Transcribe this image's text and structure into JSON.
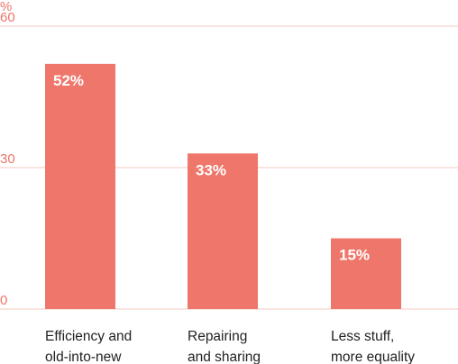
{
  "chart_data": {
    "type": "bar",
    "unit_label": "%",
    "categories": [
      [
        "Efficiency and",
        "old-into-new"
      ],
      [
        "Repairing",
        "and sharing"
      ],
      [
        "Less stuff,",
        "more equality"
      ]
    ],
    "values": [
      52,
      33,
      15
    ],
    "data_labels": [
      "52%",
      "33%",
      "15%"
    ],
    "yticks": [
      60,
      30,
      0
    ],
    "ylim": [
      0,
      60
    ],
    "grid": true,
    "colors": {
      "bar": "#ef766a",
      "grid": "#f6c9c2",
      "axis_text": "#e9766b",
      "category_text": "#222222",
      "data_label_text": "#ffffff"
    }
  }
}
